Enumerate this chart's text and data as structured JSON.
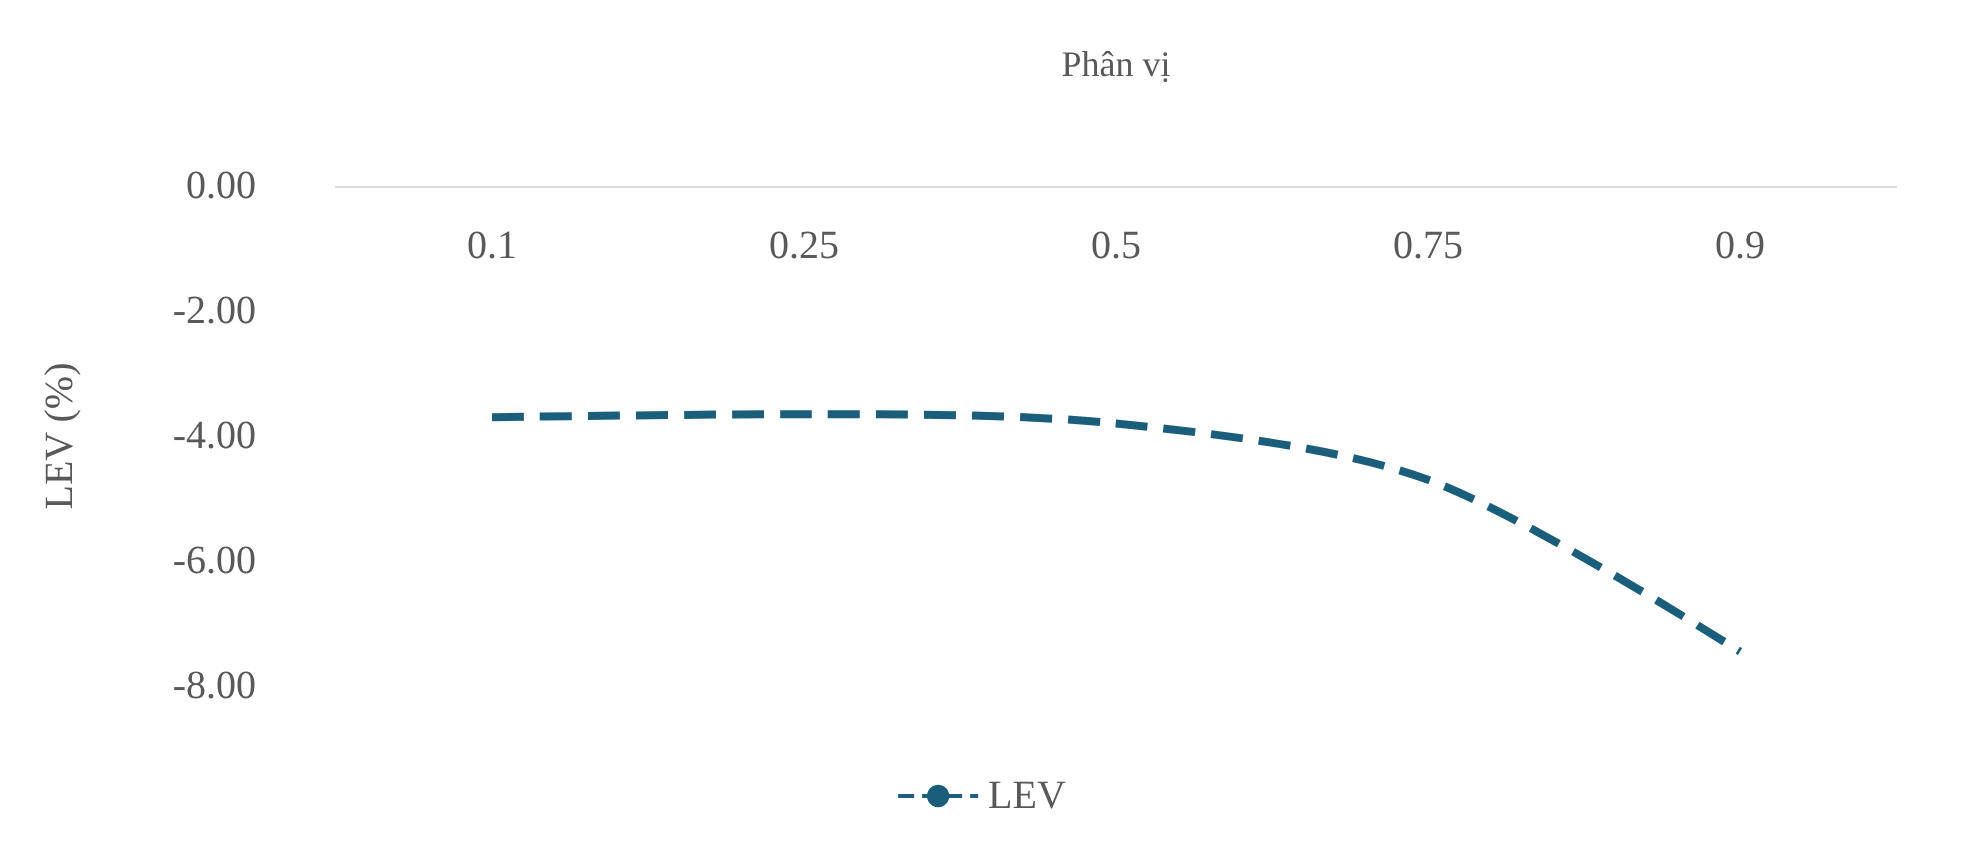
{
  "chart_data": {
    "type": "line",
    "xlabel": "Phân vị",
    "ylabel": "LEV (%)",
    "categories": [
      "0.1",
      "0.25",
      "0.5",
      "0.75",
      "0.9"
    ],
    "series": [
      {
        "name": "LEV",
        "color": "#1b5e7b",
        "values": [
          -3.7,
          -3.65,
          -3.8,
          -4.7,
          -7.45
        ]
      }
    ],
    "ylim": [
      -8,
      0
    ],
    "yticks": [
      {
        "value": -8,
        "label": "-8.00"
      },
      {
        "value": -6,
        "label": "-6.00"
      },
      {
        "value": -4,
        "label": "-4.00"
      },
      {
        "value": -2,
        "label": "-2.00"
      },
      {
        "value": 0,
        "label": "0.00"
      }
    ],
    "grid": false,
    "legend": "bottom",
    "marker": "none",
    "line_style": "dashed"
  }
}
